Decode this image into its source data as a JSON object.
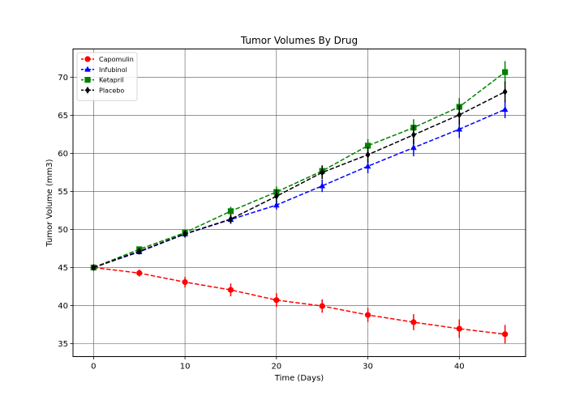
{
  "chart_data": {
    "type": "line",
    "title": "Tumor Volumes By Drug",
    "xlabel": "Time (Days)",
    "ylabel": "Tumor Volume (mm3)",
    "xlim": [
      -2.25,
      47.25
    ],
    "ylim": [
      33.3,
      73.7
    ],
    "xticks": [
      0,
      10,
      20,
      30,
      40
    ],
    "yticks": [
      35,
      40,
      45,
      50,
      55,
      60,
      65,
      70
    ],
    "grid": true,
    "legend_position": "top-left",
    "line_style": "dashed",
    "x": [
      0,
      5,
      10,
      15,
      20,
      25,
      30,
      35,
      40,
      45
    ],
    "series": [
      {
        "name": "Capomulin",
        "color": "#ff0000",
        "marker": "circle",
        "values": [
          45.0,
          44.27,
          43.08,
          42.06,
          40.72,
          39.94,
          38.77,
          37.82,
          36.96,
          36.24
        ],
        "errors": [
          0.0,
          0.45,
          0.7,
          0.84,
          0.91,
          0.88,
          0.93,
          1.05,
          1.22,
          1.22
        ]
      },
      {
        "name": "Infubinol",
        "color": "#0000ff",
        "marker": "triangle",
        "values": [
          45.0,
          47.06,
          49.4,
          51.3,
          53.2,
          55.72,
          58.3,
          60.74,
          63.16,
          65.76
        ],
        "errors": [
          0.0,
          0.24,
          0.48,
          0.54,
          0.6,
          0.81,
          0.93,
          1.13,
          1.16,
          1.14
        ]
      },
      {
        "name": "Ketapril",
        "color": "#008000",
        "marker": "square",
        "values": [
          45.0,
          47.39,
          49.58,
          52.4,
          54.92,
          57.68,
          61.0,
          63.37,
          66.1,
          70.66
        ],
        "errors": [
          0.0,
          0.26,
          0.36,
          0.58,
          0.73,
          0.76,
          0.88,
          1.1,
          1.16,
          1.45
        ]
      },
      {
        "name": "Placebo",
        "color": "#000000",
        "marker": "diamond",
        "values": [
          45.0,
          47.13,
          49.42,
          51.36,
          54.36,
          57.48,
          59.81,
          62.42,
          65.05,
          68.08
        ],
        "errors": [
          0.0,
          0.22,
          0.4,
          0.61,
          0.84,
          0.88,
          1.03,
          1.22,
          1.27,
          1.35
        ]
      }
    ]
  }
}
